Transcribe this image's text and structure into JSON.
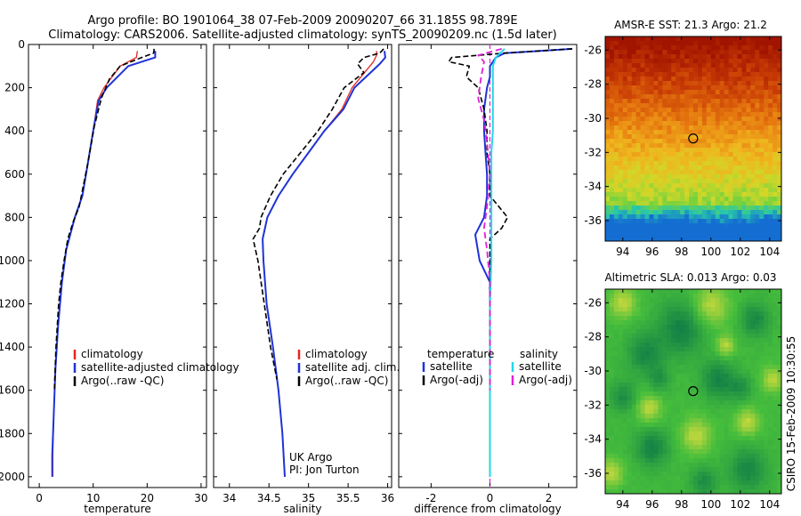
{
  "header": {
    "line1": "Argo profile: BO 1901064_38 07-Feb-2009 20090207_66 31.185S 98.789E",
    "line2": "Climatology: CARS2006. Satellite-adjusted climatology: synTS_20090209.nc (1.5d later)"
  },
  "side_label": "CSIRO 15-Feb-2009 10:30:55",
  "colors": {
    "climatology": "#e8261f",
    "satellite": "#1f33d6",
    "argo": "#000000",
    "sat_sal": "#22d8e8",
    "argo_sal": "#e020d8"
  },
  "chart_data": [
    {
      "type": "line",
      "title": "",
      "xlabel": "temperature",
      "ylabel": "",
      "xlim": [
        -2,
        31
      ],
      "ylim": [
        2050,
        0
      ],
      "xticks": [
        "0",
        "10",
        "20",
        "30"
      ],
      "yticks": [
        "0",
        "200",
        "400",
        "600",
        "800",
        "1000",
        "1200",
        "1400",
        "1600",
        "1800",
        "2000"
      ],
      "legend": [
        "climatology",
        "satellite-adjusted climatology",
        "Argo(..raw -QC)"
      ],
      "legend_position": "bottom",
      "series": [
        {
          "name": "climatology",
          "points": [
            [
              18.2,
              30
            ],
            [
              18.0,
              60
            ],
            [
              15.0,
              100
            ],
            [
              12.0,
              200
            ],
            [
              10.8,
              260
            ],
            [
              10.0,
              400
            ],
            [
              9.0,
              550
            ],
            [
              8.0,
              700
            ],
            [
              6.6,
              800
            ],
            [
              5.0,
              950
            ],
            [
              4.2,
              1100
            ],
            [
              3.5,
              1300
            ],
            [
              3.0,
              1500
            ],
            [
              2.7,
              1700
            ],
            [
              2.5,
              1900
            ],
            [
              2.5,
              2000
            ]
          ]
        },
        {
          "name": "satellite-adjusted climatology",
          "points": [
            [
              21.5,
              30
            ],
            [
              21.5,
              60
            ],
            [
              16.5,
              100
            ],
            [
              12.5,
              200
            ],
            [
              11.0,
              260
            ],
            [
              10.0,
              400
            ],
            [
              9.0,
              550
            ],
            [
              8.0,
              700
            ],
            [
              6.6,
              800
            ],
            [
              5.0,
              950
            ],
            [
              4.2,
              1100
            ],
            [
              3.5,
              1300
            ],
            [
              3.0,
              1500
            ],
            [
              2.7,
              1700
            ],
            [
              2.4,
              1900
            ],
            [
              2.4,
              2000
            ]
          ]
        },
        {
          "name": "Argo(..raw -QC)",
          "points": [
            [
              21.3,
              20
            ],
            [
              21.2,
              40
            ],
            [
              19.0,
              60
            ],
            [
              17.5,
              75
            ],
            [
              15.0,
              100
            ],
            [
              13.0,
              160
            ],
            [
              11.5,
              250
            ],
            [
              10.2,
              380
            ],
            [
              9.0,
              550
            ],
            [
              8.2,
              650
            ],
            [
              7.4,
              750
            ],
            [
              6.3,
              820
            ],
            [
              5.3,
              900
            ],
            [
              4.6,
              1000
            ],
            [
              4.0,
              1100
            ],
            [
              3.6,
              1200
            ],
            [
              3.1,
              1400
            ],
            [
              2.8,
              1600
            ]
          ]
        }
      ]
    },
    {
      "type": "line",
      "title": "",
      "xlabel": "salinity",
      "ylabel": "",
      "xlim": [
        33.8,
        36.05
      ],
      "ylim": [
        2050,
        0
      ],
      "xticks": [
        "34",
        "34.5",
        "35",
        "35.5",
        "36"
      ],
      "legend": [
        "climatology",
        "satellite adj. clim.",
        "Argo(..raw -QC)"
      ],
      "legend_position": "bottom",
      "annotations": [
        "UK Argo",
        "PI: Jon Turton"
      ],
      "series": [
        {
          "name": "climatology",
          "points": [
            [
              35.86,
              30
            ],
            [
              35.86,
              50
            ],
            [
              35.82,
              80
            ],
            [
              35.55,
              200
            ],
            [
              35.42,
              300
            ],
            [
              35.2,
              400
            ],
            [
              35.0,
              500
            ],
            [
              34.8,
              600
            ],
            [
              34.62,
              700
            ],
            [
              34.48,
              800
            ],
            [
              34.42,
              900
            ],
            [
              34.43,
              1000
            ],
            [
              34.47,
              1200
            ],
            [
              34.55,
              1400
            ],
            [
              34.62,
              1600
            ],
            [
              34.67,
              1800
            ],
            [
              34.7,
              2000
            ]
          ]
        },
        {
          "name": "satellite adj. clim.",
          "points": [
            [
              35.96,
              30
            ],
            [
              35.97,
              60
            ],
            [
              35.9,
              90
            ],
            [
              35.58,
              200
            ],
            [
              35.44,
              300
            ],
            [
              35.2,
              400
            ],
            [
              35.0,
              500
            ],
            [
              34.8,
              600
            ],
            [
              34.62,
              700
            ],
            [
              34.48,
              800
            ],
            [
              34.42,
              900
            ],
            [
              34.43,
              1000
            ],
            [
              34.47,
              1200
            ],
            [
              34.55,
              1400
            ],
            [
              34.62,
              1600
            ],
            [
              34.67,
              1800
            ],
            [
              34.7,
              2000
            ]
          ]
        },
        {
          "name": "Argo(..raw -QC)",
          "points": [
            [
              35.95,
              20
            ],
            [
              35.9,
              40
            ],
            [
              35.7,
              60
            ],
            [
              35.62,
              90
            ],
            [
              35.7,
              130
            ],
            [
              35.45,
              200
            ],
            [
              35.3,
              300
            ],
            [
              35.12,
              400
            ],
            [
              34.9,
              500
            ],
            [
              34.68,
              600
            ],
            [
              34.52,
              700
            ],
            [
              34.4,
              800
            ],
            [
              34.38,
              850
            ],
            [
              34.3,
              900
            ],
            [
              34.36,
              1000
            ],
            [
              34.44,
              1200
            ],
            [
              34.52,
              1400
            ],
            [
              34.6,
              1550
            ]
          ]
        }
      ]
    },
    {
      "type": "line",
      "title": "",
      "xlabel": "difference from climatology",
      "ylabel": "",
      "xlim": [
        -3.1,
        2.95
      ],
      "ylim": [
        2050,
        0
      ],
      "xticks": [
        "-2",
        "0",
        "2"
      ],
      "legend": [
        "temperature",
        "satellite",
        "Argo(-adj)",
        "salinity",
        "satellite",
        "Argo(-adj)"
      ],
      "legend_position": "bottom",
      "series": [
        {
          "name": "temperature satellite",
          "points": [
            [
              2.8,
              20
            ],
            [
              0.5,
              40
            ],
            [
              0.2,
              60
            ],
            [
              0,
              100
            ],
            [
              0,
              150
            ],
            [
              -0.1,
              200
            ],
            [
              -0.2,
              300
            ],
            [
              -0.2,
              400
            ],
            [
              -0.15,
              500
            ],
            [
              -0.1,
              600
            ],
            [
              -0.1,
              700
            ],
            [
              -0.2,
              800
            ],
            [
              -0.5,
              880
            ],
            [
              -0.35,
              1000
            ],
            [
              0,
              1100
            ],
            [
              0,
              1300
            ],
            [
              0,
              1600
            ],
            [
              0,
              2000
            ]
          ]
        },
        {
          "name": "temperature Argo(-adj)",
          "points": [
            [
              2.8,
              20
            ],
            [
              0.5,
              40
            ],
            [
              -1.3,
              60
            ],
            [
              -1.4,
              80
            ],
            [
              -0.7,
              100
            ],
            [
              -0.8,
              150
            ],
            [
              -0.4,
              200
            ],
            [
              -0.2,
              300
            ],
            [
              -0.1,
              400
            ],
            [
              -0.1,
              500
            ],
            [
              0,
              600
            ],
            [
              0,
              700
            ],
            [
              0.6,
              800
            ],
            [
              0.4,
              850
            ],
            [
              0,
              900
            ],
            [
              0,
              1100
            ],
            [
              0,
              1300
            ],
            [
              0,
              1600
            ]
          ]
        },
        {
          "name": "salinity satellite",
          "points": [
            [
              0.5,
              20
            ],
            [
              0.2,
              60
            ],
            [
              0.1,
              100
            ],
            [
              0.1,
              200
            ],
            [
              0.1,
              300
            ],
            [
              0.1,
              400
            ],
            [
              0.05,
              500
            ],
            [
              0.05,
              600
            ],
            [
              0.05,
              800
            ],
            [
              0.05,
              1000
            ],
            [
              0,
              1200
            ],
            [
              0,
              1600
            ],
            [
              0,
              2000
            ]
          ]
        },
        {
          "name": "salinity Argo(-adj)",
          "points": [
            [
              0.4,
              20
            ],
            [
              -0.4,
              50
            ],
            [
              -0.2,
              80
            ],
            [
              -0.3,
              150
            ],
            [
              -0.4,
              250
            ],
            [
              -0.2,
              350
            ],
            [
              -0.1,
              450
            ],
            [
              0,
              600
            ],
            [
              -0.1,
              750
            ],
            [
              -0.2,
              850
            ],
            [
              -0.1,
              950
            ],
            [
              0,
              1100
            ],
            [
              0,
              1300
            ],
            [
              0,
              1600
            ]
          ]
        }
      ]
    },
    {
      "type": "heatmap",
      "title": "AMSR-E SST: 21.3 Argo: 21.2",
      "xlim": [
        92.8,
        104.8
      ],
      "ylim": [
        -37.2,
        -25.2
      ],
      "xticks": [
        "94",
        "96",
        "98",
        "100",
        "102",
        "104"
      ],
      "yticks": [
        "-26",
        "-28",
        "-30",
        "-32",
        "-34",
        "-36"
      ],
      "marker": {
        "lon": 98.79,
        "lat": -31.18
      }
    },
    {
      "type": "heatmap",
      "title": "Altimetric SLA: 0.013 Argo: 0.03",
      "xlim": [
        92.8,
        104.8
      ],
      "ylim": [
        -37.2,
        -25.2
      ],
      "xticks": [
        "94",
        "96",
        "98",
        "100",
        "102",
        "104"
      ],
      "yticks": [
        "-26",
        "-28",
        "-30",
        "-32",
        "-34",
        "-36"
      ],
      "marker": {
        "lon": 98.79,
        "lat": -31.18
      }
    }
  ]
}
